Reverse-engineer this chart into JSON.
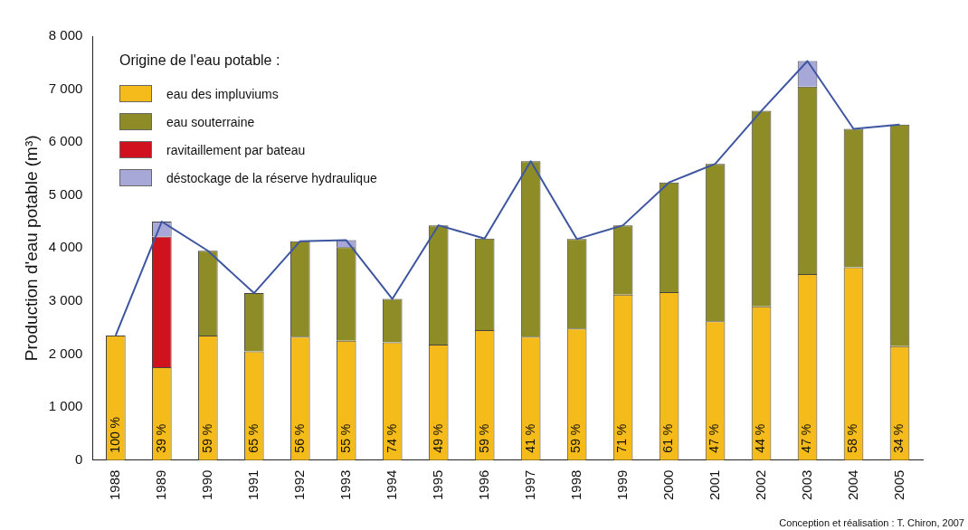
{
  "chart_data": {
    "type": "bar",
    "stacked": true,
    "ylabel": "Production d'eau potable (m³)",
    "legend_title": "Origine de l'eau potable :",
    "legend": "top left",
    "categories": [
      "1988",
      "1989",
      "1990",
      "1991",
      "1992",
      "1993",
      "1994",
      "1995",
      "1996",
      "1997",
      "1998",
      "1999",
      "2000",
      "2001",
      "2002",
      "2003",
      "2004",
      "2005"
    ],
    "ylim": [
      0,
      8000
    ],
    "yticks": [
      {
        "value": 0,
        "label": "0"
      },
      {
        "value": 1000,
        "label": "1 000"
      },
      {
        "value": 2000,
        "label": "2 000"
      },
      {
        "value": 3000,
        "label": "3 000"
      },
      {
        "value": 4000,
        "label": "4 000"
      },
      {
        "value": 5000,
        "label": "5 000"
      },
      {
        "value": 6000,
        "label": "6 000"
      },
      {
        "value": 7000,
        "label": "7 000"
      },
      {
        "value": 8000,
        "label": "8 000"
      }
    ],
    "series": [
      {
        "name": "eau des impluviums",
        "color": "#f5bb1a",
        "values": [
          2350,
          1750,
          2350,
          2050,
          2330,
          2250,
          2220,
          2180,
          2450,
          2330,
          2480,
          3120,
          3170,
          2620,
          2900,
          3510,
          3640,
          2150
        ]
      },
      {
        "name": "eau souterraine",
        "color": "#8d8c26",
        "values": [
          null,
          null,
          1600,
          1100,
          1800,
          1770,
          820,
          2250,
          1730,
          3310,
          1690,
          1310,
          2070,
          2970,
          3690,
          3540,
          2610,
          4180
        ]
      },
      {
        "name": "ravitaillement par bateau",
        "color": "#d0121e",
        "values": [
          null,
          2470,
          null,
          null,
          null,
          null,
          null,
          null,
          null,
          null,
          null,
          null,
          null,
          null,
          null,
          null,
          null,
          null
        ]
      },
      {
        "name": "déstockage de la réserve hydraulique",
        "color": "#a8a8d8",
        "values": [
          null,
          280,
          null,
          null,
          null,
          130,
          null,
          null,
          null,
          null,
          null,
          null,
          null,
          null,
          null,
          480,
          null,
          null
        ]
      },
      {
        "type": "line",
        "color": "#3e56a0",
        "values": [
          2350,
          4500,
          3950,
          3150,
          4130,
          4150,
          3040,
          4430,
          4180,
          5640,
          4170,
          4430,
          5240,
          5590,
          6590,
          7530,
          6250,
          6330
        ]
      }
    ],
    "annotations": [
      "100 %",
      "39 %",
      "59 %",
      "65 %",
      "56 %",
      "55 %",
      "74 %",
      "49 %",
      "59 %",
      "41 %",
      "59 %",
      "71 %",
      "61 %",
      "47 %",
      "44 %",
      "47 %",
      "58 %",
      "34 %",
      "Conception et réalisation : T. Chiron, 2007"
    ]
  }
}
